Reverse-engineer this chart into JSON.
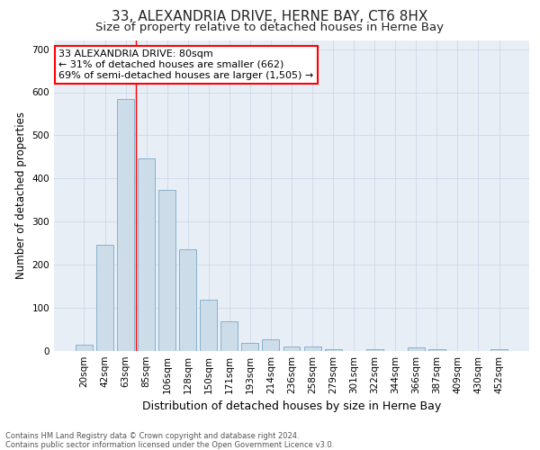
{
  "title": "33, ALEXANDRIA DRIVE, HERNE BAY, CT6 8HX",
  "subtitle": "Size of property relative to detached houses in Herne Bay",
  "xlabel": "Distribution of detached houses by size in Herne Bay",
  "ylabel": "Number of detached properties",
  "footer_line1": "Contains HM Land Registry data © Crown copyright and database right 2024.",
  "footer_line2": "Contains public sector information licensed under the Open Government Licence v3.0.",
  "categories": [
    "20sqm",
    "42sqm",
    "63sqm",
    "85sqm",
    "106sqm",
    "128sqm",
    "150sqm",
    "171sqm",
    "193sqm",
    "214sqm",
    "236sqm",
    "258sqm",
    "279sqm",
    "301sqm",
    "322sqm",
    "344sqm",
    "366sqm",
    "387sqm",
    "409sqm",
    "430sqm",
    "452sqm"
  ],
  "values": [
    15,
    247,
    585,
    447,
    373,
    235,
    118,
    68,
    18,
    28,
    10,
    10,
    5,
    0,
    5,
    0,
    8,
    5,
    0,
    0,
    5
  ],
  "bar_color": "#ccdce8",
  "bar_edge_color": "#7aaac8",
  "red_line_between": [
    2,
    3
  ],
  "ylim": [
    0,
    720
  ],
  "yticks": [
    0,
    100,
    200,
    300,
    400,
    500,
    600,
    700
  ],
  "annotation_text": "33 ALEXANDRIA DRIVE: 80sqm\n← 31% of detached houses are smaller (662)\n69% of semi-detached houses are larger (1,505) →",
  "annotation_box_facecolor": "white",
  "annotation_box_edgecolor": "red",
  "grid_color": "#ccd8e8",
  "background_color": "#e8eef6",
  "title_fontsize": 11,
  "subtitle_fontsize": 9.5,
  "tick_fontsize": 7.5,
  "ylabel_fontsize": 8.5,
  "xlabel_fontsize": 9,
  "annotation_fontsize": 8,
  "footer_fontsize": 6,
  "title_color": "#222222",
  "footer_color": "#555555"
}
